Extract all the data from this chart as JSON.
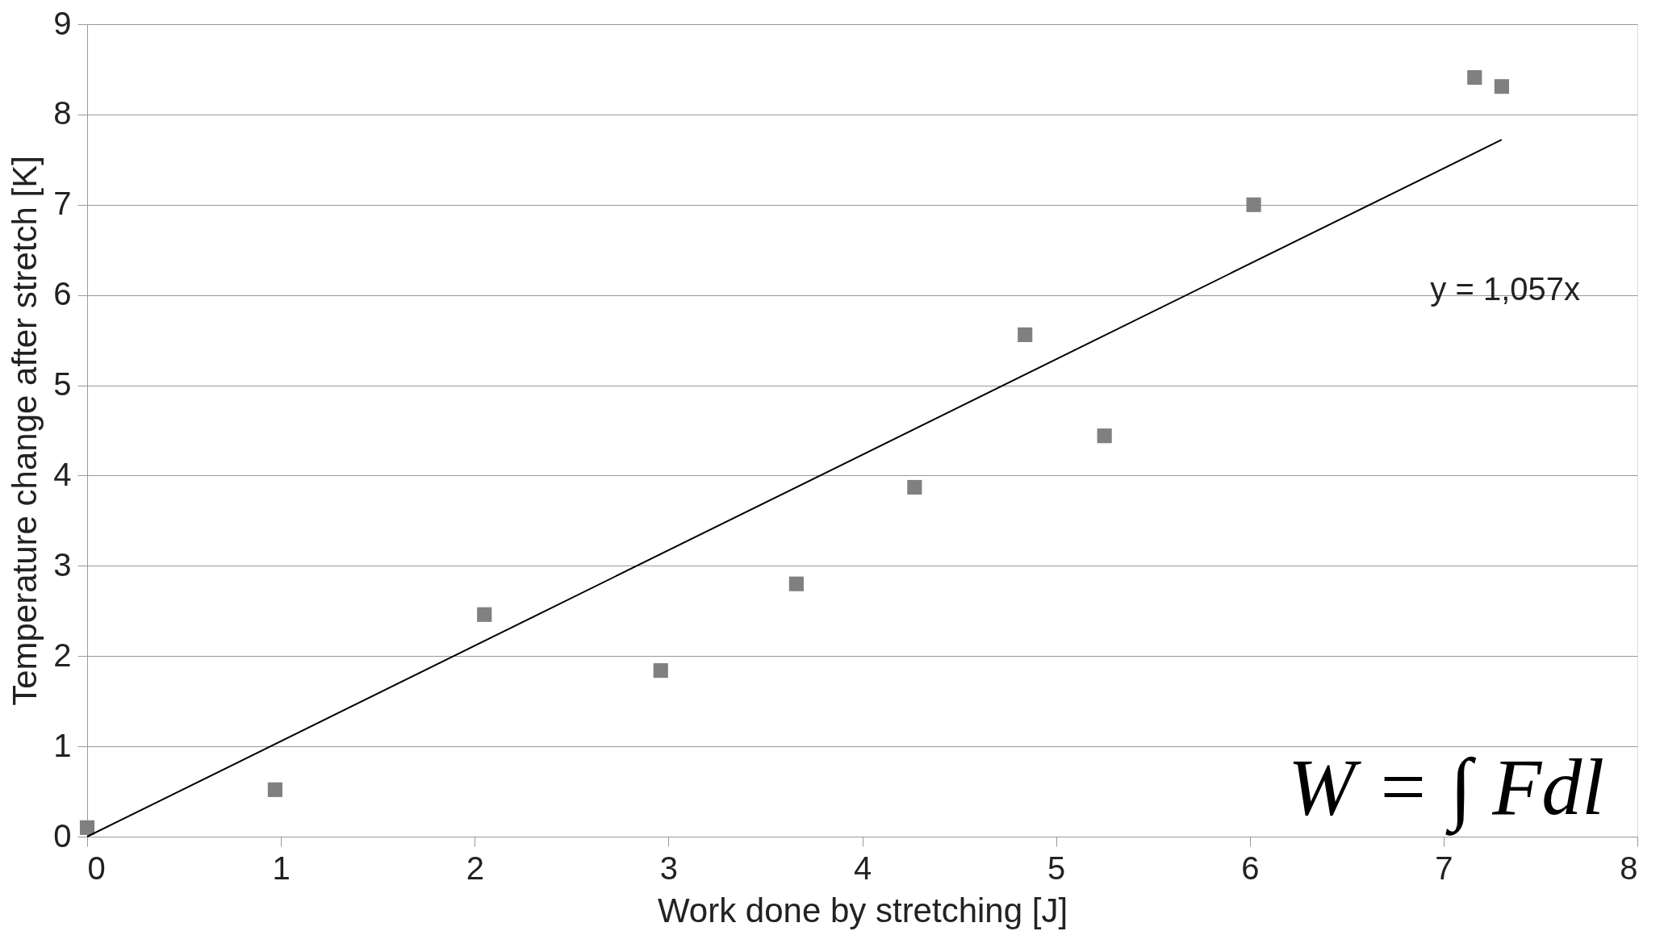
{
  "chart_data": {
    "type": "scatter",
    "xlabel": "Work done by stretching [J]",
    "ylabel": "Temperature change after stretch [K]",
    "series": [
      {
        "color": "#808080",
        "marker": "square",
        "x": [
          0,
          0.97,
          2.05,
          2.96,
          3.66,
          4.27,
          4.84,
          5.25,
          6.02,
          7.16,
          7.3
        ],
        "values": [
          0.1,
          0.52,
          2.46,
          1.84,
          2.8,
          3.87,
          5.56,
          4.44,
          7.0,
          8.41,
          8.31
        ]
      },
      {
        "type": "line",
        "color": "#000000",
        "marker": "none",
        "line_style": "solid",
        "x": [
          0,
          7.3
        ],
        "values": [
          0,
          7.72
        ]
      }
    ],
    "annotations": [
      "y = 1,057x",
      "W = ∫ Fdl"
    ],
    "xlim": [
      0,
      8
    ],
    "xticks": [
      0,
      1,
      2,
      3,
      4,
      5,
      6,
      7,
      8
    ],
    "ylim": [
      0,
      9
    ],
    "yticks": [
      0,
      1,
      2,
      3,
      4,
      5,
      6,
      7,
      8,
      9
    ],
    "grid": "y"
  }
}
